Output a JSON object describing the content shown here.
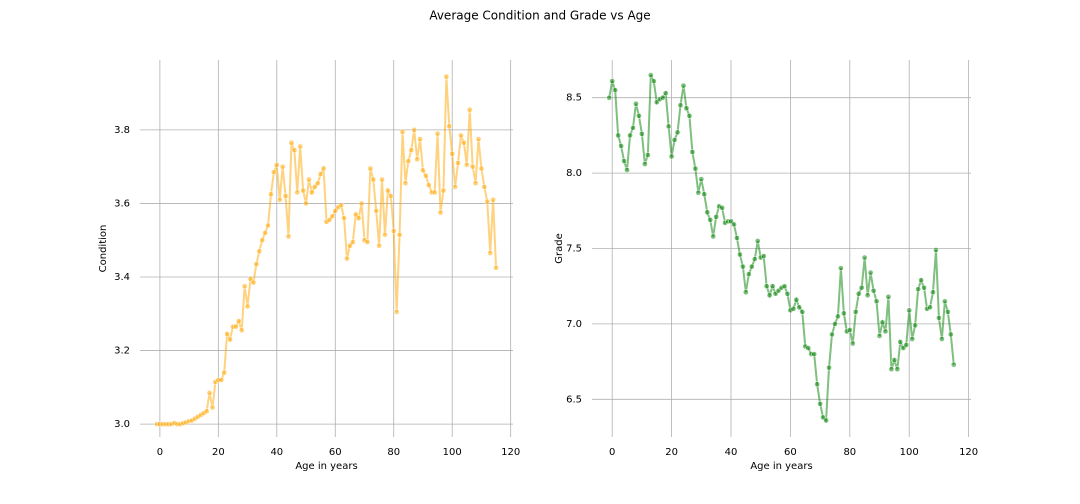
{
  "title": "Average Condition and Grade vs Age",
  "chart_data": [
    {
      "type": "line",
      "xlabel": "Age in years",
      "ylabel": "Condition",
      "color": "#ffa500",
      "grid": true,
      "xlim": [
        -6.8,
        120.8
      ],
      "xticks": [
        0,
        20,
        40,
        60,
        80,
        100,
        120
      ],
      "ylim": [
        2.965,
        3.99
      ],
      "yticks": [
        {
          "value": 3,
          "label": "3.0"
        },
        3.2,
        3.4,
        3.6,
        3.8
      ],
      "x": [
        -1,
        0,
        1,
        2,
        3,
        4,
        5,
        6,
        7,
        8,
        9,
        10,
        11,
        12,
        13,
        14,
        15,
        16,
        17,
        18,
        19,
        20,
        21,
        22,
        23,
        24,
        25,
        26,
        27,
        28,
        29,
        30,
        31,
        32,
        33,
        34,
        35,
        36,
        37,
        38,
        39,
        40,
        41,
        42,
        43,
        44,
        45,
        46,
        47,
        48,
        49,
        50,
        51,
        52,
        53,
        54,
        55,
        56,
        57,
        58,
        59,
        60,
        61,
        62,
        63,
        64,
        65,
        66,
        67,
        68,
        69,
        70,
        71,
        72,
        73,
        74,
        75,
        76,
        77,
        78,
        79,
        80,
        81,
        82,
        83,
        84,
        85,
        86,
        87,
        88,
        89,
        90,
        91,
        92,
        93,
        94,
        95,
        96,
        97,
        98,
        99,
        100,
        101,
        102,
        103,
        104,
        105,
        106,
        107,
        108,
        109,
        110,
        111,
        112,
        113,
        114,
        115
      ],
      "values": [
        3.0,
        3.0,
        3.0,
        3.0,
        3.0,
        3.0,
        3.003,
        3.0,
        3.0,
        3.003,
        3.005,
        3.008,
        3.01,
        3.015,
        3.02,
        3.025,
        3.03,
        3.035,
        3.085,
        3.045,
        3.115,
        3.12,
        3.12,
        3.14,
        3.245,
        3.23,
        3.265,
        3.265,
        3.28,
        3.255,
        3.375,
        3.32,
        3.395,
        3.385,
        3.435,
        3.47,
        3.5,
        3.52,
        3.54,
        3.625,
        3.685,
        3.705,
        3.61,
        3.7,
        3.62,
        3.51,
        3.765,
        3.745,
        3.63,
        3.755,
        3.635,
        3.6,
        3.665,
        3.63,
        3.645,
        3.655,
        3.68,
        3.695,
        3.55,
        3.555,
        3.565,
        3.58,
        3.59,
        3.595,
        3.56,
        3.45,
        3.485,
        3.495,
        3.57,
        3.56,
        3.6,
        3.5,
        3.495,
        3.695,
        3.665,
        3.58,
        3.485,
        3.665,
        3.515,
        3.635,
        3.62,
        3.525,
        3.305,
        3.515,
        3.795,
        3.655,
        3.715,
        3.745,
        3.8,
        3.72,
        3.775,
        3.69,
        3.675,
        3.65,
        3.63,
        3.63,
        3.79,
        3.575,
        3.635,
        3.945,
        3.81,
        3.735,
        3.645,
        3.71,
        3.785,
        3.765,
        3.705,
        3.855,
        3.7,
        3.655,
        3.775,
        3.695,
        3.645,
        3.605,
        3.465,
        3.61,
        3.425
      ]
    },
    {
      "type": "line",
      "xlabel": "Age in years",
      "ylabel": "Grade",
      "color": "#008000",
      "grid": true,
      "xlim": [
        -6.8,
        120.8
      ],
      "xticks": [
        0,
        20,
        40,
        60,
        80,
        100,
        120
      ],
      "ylim": [
        6.25,
        8.75
      ],
      "yticks": [
        6.5,
        {
          "value": 7,
          "label": "7.0"
        },
        7.5,
        {
          "value": 8,
          "label": "8.0"
        },
        8.5
      ],
      "x": [
        -1,
        0,
        1,
        2,
        3,
        4,
        5,
        6,
        7,
        8,
        9,
        10,
        11,
        12,
        13,
        14,
        15,
        16,
        17,
        18,
        19,
        20,
        21,
        22,
        23,
        24,
        25,
        26,
        27,
        28,
        29,
        30,
        31,
        32,
        33,
        34,
        35,
        36,
        37,
        38,
        39,
        40,
        41,
        42,
        43,
        44,
        45,
        46,
        47,
        48,
        49,
        50,
        51,
        52,
        53,
        54,
        55,
        56,
        57,
        58,
        59,
        60,
        61,
        62,
        63,
        64,
        65,
        66,
        67,
        68,
        69,
        70,
        71,
        72,
        73,
        74,
        75,
        76,
        77,
        78,
        79,
        80,
        81,
        82,
        83,
        84,
        85,
        86,
        87,
        88,
        89,
        90,
        91,
        92,
        93,
        94,
        95,
        96,
        97,
        98,
        99,
        100,
        101,
        102,
        103,
        104,
        105,
        106,
        107,
        108,
        109,
        110,
        111,
        112,
        113,
        114,
        115
      ],
      "values": [
        8.5,
        8.61,
        8.55,
        8.25,
        8.18,
        8.08,
        8.02,
        8.25,
        8.3,
        8.46,
        8.38,
        8.26,
        8.06,
        8.12,
        8.65,
        8.61,
        8.47,
        8.49,
        8.5,
        8.53,
        8.31,
        8.11,
        8.22,
        8.27,
        8.45,
        8.58,
        8.43,
        8.38,
        8.14,
        8.03,
        7.87,
        7.96,
        7.86,
        7.74,
        7.69,
        7.58,
        7.71,
        7.78,
        7.77,
        7.67,
        7.68,
        7.68,
        7.66,
        7.57,
        7.46,
        7.38,
        7.21,
        7.33,
        7.38,
        7.43,
        7.55,
        7.44,
        7.45,
        7.25,
        7.19,
        7.25,
        7.2,
        7.22,
        7.24,
        7.25,
        7.2,
        7.09,
        7.1,
        7.16,
        7.11,
        7.08,
        6.85,
        6.84,
        6.8,
        6.8,
        6.6,
        6.47,
        6.38,
        6.36,
        6.71,
        6.93,
        7.0,
        7.05,
        7.37,
        7.07,
        6.95,
        6.96,
        6.87,
        7.08,
        7.2,
        7.24,
        7.44,
        7.19,
        7.34,
        7.22,
        7.15,
        6.92,
        7.01,
        6.95,
        7.18,
        6.7,
        6.76,
        6.7,
        6.88,
        6.84,
        6.86,
        7.09,
        6.9,
        6.99,
        7.23,
        7.29,
        7.24,
        7.1,
        7.11,
        7.21,
        7.49,
        7.04,
        6.9,
        7.15,
        7.08,
        6.93,
        6.73
      ]
    }
  ]
}
